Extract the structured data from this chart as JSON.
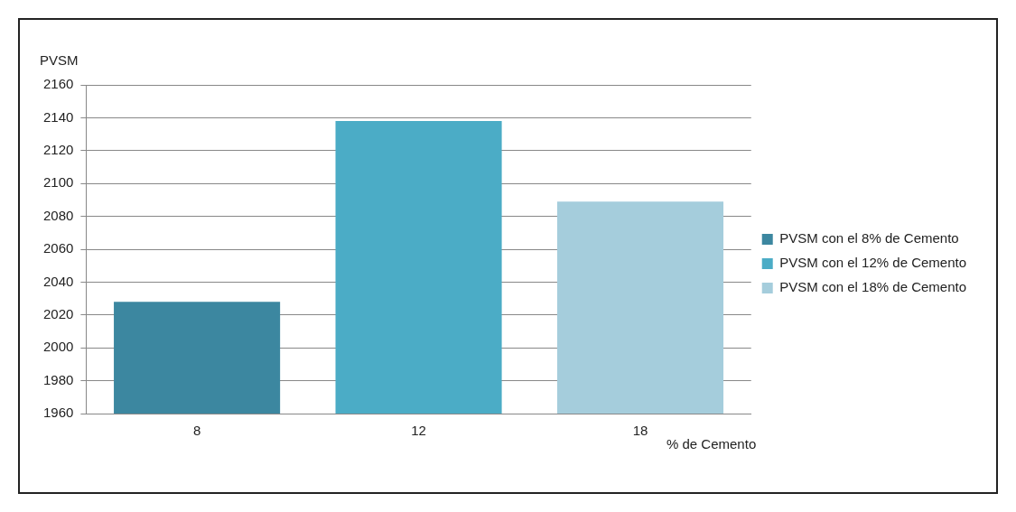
{
  "chart_data": {
    "type": "bar",
    "ylabel": "PVSM",
    "xlabel": "% de Cemento",
    "categories": [
      "8",
      "12",
      "18"
    ],
    "series": [
      {
        "name": "PVSM con el 8% de Cemento",
        "color": "#3c87a0",
        "values": [
          2028,
          null,
          null
        ]
      },
      {
        "name": "PVSM con el 12% de Cemento",
        "color": "#4bacc6",
        "values": [
          null,
          2138,
          null
        ]
      },
      {
        "name": "PVSM con el 18% de Cemento",
        "color": "#a5cddc",
        "values": [
          null,
          null,
          2089
        ]
      }
    ],
    "ylim": [
      1960,
      2160
    ],
    "yticks": [
      1960,
      1980,
      2000,
      2020,
      2040,
      2060,
      2080,
      2100,
      2120,
      2140,
      2160
    ],
    "grid": "y",
    "legend": "right"
  }
}
